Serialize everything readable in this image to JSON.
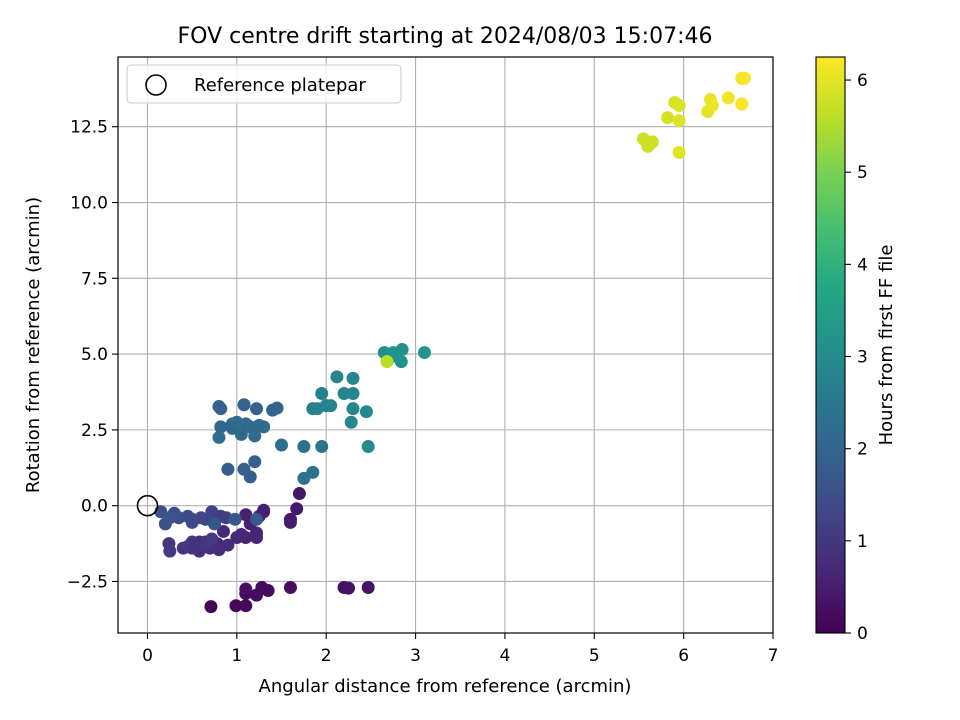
{
  "chart_data": {
    "type": "scatter",
    "title": "FOV centre drift starting at 2024/08/03 15:07:46",
    "xlabel": "Angular distance from reference (arcmin)",
    "ylabel": "Rotation from reference (arcmin)",
    "xlim": [
      -0.33,
      7.0
    ],
    "ylim": [
      -4.2,
      14.8
    ],
    "xticks": [
      0,
      1,
      2,
      3,
      4,
      5,
      6,
      7
    ],
    "yticks": [
      -2.5,
      0.0,
      2.5,
      5.0,
      7.5,
      10.0,
      12.5
    ],
    "grid": true,
    "legend": {
      "position": "top-left",
      "entries": [
        "Reference platepar"
      ]
    },
    "reference_point": {
      "x": 0.0,
      "y": 0.0
    },
    "colorbar": {
      "label": "Hours from first FF file",
      "range": [
        0,
        6.25
      ],
      "ticks": [
        0,
        1,
        2,
        3,
        4,
        5,
        6
      ],
      "colormap": "viridis"
    },
    "points": [
      {
        "x": 0.71,
        "y": -3.33,
        "c": 0.05
      },
      {
        "x": 0.99,
        "y": -3.3,
        "c": 0.08
      },
      {
        "x": 1.1,
        "y": -3.3,
        "c": 0.12
      },
      {
        "x": 1.1,
        "y": -2.9,
        "c": 0.15
      },
      {
        "x": 1.22,
        "y": -2.95,
        "c": 0.18
      },
      {
        "x": 1.28,
        "y": -2.7,
        "c": 0.2
      },
      {
        "x": 1.35,
        "y": -2.8,
        "c": 0.22
      },
      {
        "x": 1.1,
        "y": -2.75,
        "c": 0.25
      },
      {
        "x": 1.6,
        "y": -2.7,
        "c": 0.27
      },
      {
        "x": 2.2,
        "y": -2.7,
        "c": 0.3
      },
      {
        "x": 2.25,
        "y": -2.72,
        "c": 0.32
      },
      {
        "x": 2.47,
        "y": -2.7,
        "c": 0.34
      },
      {
        "x": 1.7,
        "y": 0.4,
        "c": 0.38
      },
      {
        "x": 1.67,
        "y": -0.1,
        "c": 0.42
      },
      {
        "x": 1.6,
        "y": -0.45,
        "c": 0.45
      },
      {
        "x": 1.6,
        "y": -0.55,
        "c": 0.48
      },
      {
        "x": 1.3,
        "y": -0.2,
        "c": 0.5
      },
      {
        "x": 1.25,
        "y": -0.35,
        "c": 0.52
      },
      {
        "x": 1.3,
        "y": -0.15,
        "c": 0.55
      },
      {
        "x": 1.1,
        "y": -0.3,
        "c": 0.57
      },
      {
        "x": 1.15,
        "y": -0.6,
        "c": 0.6
      },
      {
        "x": 1.22,
        "y": -0.9,
        "c": 0.62
      },
      {
        "x": 1.22,
        "y": -1.05,
        "c": 0.64
      },
      {
        "x": 1.1,
        "y": -1.05,
        "c": 0.66
      },
      {
        "x": 1.05,
        "y": -0.95,
        "c": 0.68
      },
      {
        "x": 1.0,
        "y": -1.05,
        "c": 0.7
      },
      {
        "x": 0.85,
        "y": -0.85,
        "c": 0.72
      },
      {
        "x": 0.9,
        "y": -1.3,
        "c": 0.74
      },
      {
        "x": 0.78,
        "y": -1.25,
        "c": 0.76
      },
      {
        "x": 0.72,
        "y": -1.2,
        "c": 0.78
      },
      {
        "x": 0.8,
        "y": -1.45,
        "c": 0.8
      },
      {
        "x": 0.7,
        "y": -1.4,
        "c": 0.82
      },
      {
        "x": 0.58,
        "y": -1.2,
        "c": 0.84
      },
      {
        "x": 0.58,
        "y": -1.5,
        "c": 0.86
      },
      {
        "x": 0.65,
        "y": -1.2,
        "c": 0.88
      },
      {
        "x": 0.55,
        "y": -1.3,
        "c": 0.9
      },
      {
        "x": 0.5,
        "y": -1.4,
        "c": 0.92
      },
      {
        "x": 0.45,
        "y": -1.35,
        "c": 0.94
      },
      {
        "x": 0.5,
        "y": -1.2,
        "c": 0.96
      },
      {
        "x": 0.4,
        "y": -1.4,
        "c": 0.98
      },
      {
        "x": 0.24,
        "y": -1.25,
        "c": 1.0
      },
      {
        "x": 0.25,
        "y": -1.5,
        "c": 1.02
      },
      {
        "x": 0.66,
        "y": -1.25,
        "c": 1.04
      },
      {
        "x": 0.72,
        "y": -1.1,
        "c": 1.06
      },
      {
        "x": 0.72,
        "y": -0.4,
        "c": 1.1
      },
      {
        "x": 0.82,
        "y": -0.35,
        "c": 1.14
      },
      {
        "x": 0.88,
        "y": -0.4,
        "c": 1.18
      },
      {
        "x": 0.72,
        "y": -0.2,
        "c": 1.22
      },
      {
        "x": 0.65,
        "y": -0.45,
        "c": 1.26
      },
      {
        "x": 0.6,
        "y": -0.4,
        "c": 1.3
      },
      {
        "x": 0.5,
        "y": -0.45,
        "c": 1.34
      },
      {
        "x": 0.5,
        "y": -0.55,
        "c": 1.38
      },
      {
        "x": 0.45,
        "y": -0.35,
        "c": 1.42
      },
      {
        "x": 0.35,
        "y": -0.4,
        "c": 1.46
      },
      {
        "x": 0.3,
        "y": -0.25,
        "c": 1.5
      },
      {
        "x": 0.2,
        "y": -0.6,
        "c": 1.54
      },
      {
        "x": 0.15,
        "y": -0.2,
        "c": 1.58
      },
      {
        "x": 0.25,
        "y": -0.4,
        "c": 1.62
      },
      {
        "x": 0.75,
        "y": -0.6,
        "c": 1.66
      },
      {
        "x": 0.98,
        "y": -0.45,
        "c": 1.7
      },
      {
        "x": 1.22,
        "y": -0.45,
        "c": 1.74
      },
      {
        "x": 0.9,
        "y": 1.2,
        "c": 1.8
      },
      {
        "x": 1.15,
        "y": 0.95,
        "c": 1.84
      },
      {
        "x": 1.2,
        "y": 1.45,
        "c": 1.88
      },
      {
        "x": 1.08,
        "y": 1.2,
        "c": 1.9
      },
      {
        "x": 0.8,
        "y": 3.27,
        "c": 1.92
      },
      {
        "x": 0.82,
        "y": 3.2,
        "c": 1.94
      },
      {
        "x": 1.08,
        "y": 3.33,
        "c": 1.96
      },
      {
        "x": 1.22,
        "y": 3.2,
        "c": 1.98
      },
      {
        "x": 1.4,
        "y": 3.15,
        "c": 2.0
      },
      {
        "x": 1.45,
        "y": 3.22,
        "c": 2.02
      },
      {
        "x": 0.95,
        "y": 2.7,
        "c": 2.04
      },
      {
        "x": 0.82,
        "y": 2.6,
        "c": 2.06
      },
      {
        "x": 0.95,
        "y": 2.55,
        "c": 2.08
      },
      {
        "x": 1.05,
        "y": 2.35,
        "c": 2.1
      },
      {
        "x": 1.1,
        "y": 2.7,
        "c": 2.12
      },
      {
        "x": 1.15,
        "y": 2.6,
        "c": 2.14
      },
      {
        "x": 1.2,
        "y": 2.3,
        "c": 2.16
      },
      {
        "x": 1.25,
        "y": 2.65,
        "c": 2.18
      },
      {
        "x": 1.3,
        "y": 2.6,
        "c": 2.2
      },
      {
        "x": 1.0,
        "y": 2.75,
        "c": 2.22
      },
      {
        "x": 0.8,
        "y": 2.25,
        "c": 2.24
      },
      {
        "x": 1.5,
        "y": 2.0,
        "c": 2.26
      },
      {
        "x": 1.75,
        "y": 1.95,
        "c": 2.3
      },
      {
        "x": 1.75,
        "y": 0.9,
        "c": 2.34
      },
      {
        "x": 1.85,
        "y": 1.1,
        "c": 2.38
      },
      {
        "x": 1.95,
        "y": 1.95,
        "c": 2.42
      },
      {
        "x": 1.9,
        "y": 3.2,
        "c": 2.7
      },
      {
        "x": 1.85,
        "y": 3.2,
        "c": 2.72
      },
      {
        "x": 1.95,
        "y": 3.7,
        "c": 2.74
      },
      {
        "x": 2.0,
        "y": 3.3,
        "c": 2.76
      },
      {
        "x": 2.05,
        "y": 3.3,
        "c": 2.78
      },
      {
        "x": 2.12,
        "y": 4.25,
        "c": 2.8
      },
      {
        "x": 2.2,
        "y": 3.7,
        "c": 2.82
      },
      {
        "x": 2.3,
        "y": 3.7,
        "c": 2.84
      },
      {
        "x": 2.3,
        "y": 4.2,
        "c": 2.86
      },
      {
        "x": 2.3,
        "y": 3.2,
        "c": 2.88
      },
      {
        "x": 2.28,
        "y": 2.75,
        "c": 2.9
      },
      {
        "x": 2.45,
        "y": 3.1,
        "c": 2.92
      },
      {
        "x": 2.47,
        "y": 1.95,
        "c": 2.94
      },
      {
        "x": 2.65,
        "y": 5.05,
        "c": 3.1
      },
      {
        "x": 2.72,
        "y": 4.9,
        "c": 3.12
      },
      {
        "x": 2.75,
        "y": 5.05,
        "c": 3.14
      },
      {
        "x": 2.85,
        "y": 5.15,
        "c": 3.16
      },
      {
        "x": 2.84,
        "y": 4.75,
        "c": 3.18
      },
      {
        "x": 3.1,
        "y": 5.05,
        "c": 3.2
      },
      {
        "x": 2.68,
        "y": 4.75,
        "c": 5.6
      },
      {
        "x": 5.55,
        "y": 12.1,
        "c": 5.75
      },
      {
        "x": 5.6,
        "y": 11.85,
        "c": 5.78
      },
      {
        "x": 5.65,
        "y": 12.0,
        "c": 5.8
      },
      {
        "x": 5.82,
        "y": 12.8,
        "c": 5.85
      },
      {
        "x": 5.9,
        "y": 13.3,
        "c": 5.9
      },
      {
        "x": 5.95,
        "y": 13.2,
        "c": 5.92
      },
      {
        "x": 5.95,
        "y": 12.7,
        "c": 5.95
      },
      {
        "x": 5.95,
        "y": 11.65,
        "c": 5.98
      },
      {
        "x": 6.27,
        "y": 13.0,
        "c": 6.0
      },
      {
        "x": 6.3,
        "y": 13.4,
        "c": 6.05
      },
      {
        "x": 6.32,
        "y": 13.2,
        "c": 6.08
      },
      {
        "x": 6.5,
        "y": 13.45,
        "c": 6.1
      },
      {
        "x": 6.65,
        "y": 14.1,
        "c": 6.15
      },
      {
        "x": 6.68,
        "y": 14.1,
        "c": 6.18
      },
      {
        "x": 6.65,
        "y": 13.25,
        "c": 6.2
      }
    ]
  }
}
